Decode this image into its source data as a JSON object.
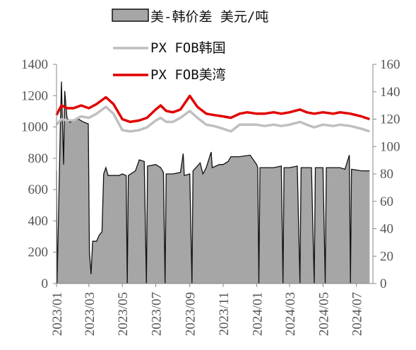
{
  "chart_data": {
    "type": "line",
    "legend": [
      {
        "label": "美-韩价差 美元/吨",
        "kind": "area",
        "color": "#a6a6a6"
      },
      {
        "label": "PX FOB韩国",
        "kind": "line",
        "color": "#bfbfbf"
      },
      {
        "label": "PX FOB美湾",
        "kind": "line",
        "color": "#e10000"
      }
    ],
    "y_left": {
      "range": [
        0,
        1400
      ],
      "ticks": [
        0,
        200,
        400,
        600,
        800,
        1000,
        1200,
        1400
      ]
    },
    "y_right": {
      "range": [
        0,
        160
      ],
      "ticks": [
        0,
        20,
        40,
        60,
        80,
        100,
        120,
        140,
        160
      ]
    },
    "x_ticks": [
      "2023/01",
      "2023/03",
      "2023/05",
      "2023/07",
      "2023/09",
      "2023/11",
      "2024/01",
      "2024/03",
      "2024/05",
      "2024/07"
    ],
    "series": [
      {
        "name": "美-韩价差 美元/吨",
        "kind": "area",
        "axis": "left",
        "points": [
          [
            "2023-01-01",
            720
          ],
          [
            "2023-01-02",
            0
          ],
          [
            "2023-01-05",
            490
          ],
          [
            "2023-01-08",
            1000
          ],
          [
            "2023-01-10",
            1290
          ],
          [
            "2023-01-12",
            1020
          ],
          [
            "2023-01-14",
            760
          ],
          [
            "2023-01-16",
            1230
          ],
          [
            "2023-01-20",
            1060
          ],
          [
            "2023-01-25",
            1030
          ],
          [
            "2023-02-01",
            1040
          ],
          [
            "2023-02-10",
            1050
          ],
          [
            "2023-02-20",
            1030
          ],
          [
            "2023-02-28",
            1020
          ],
          [
            "2023-03-02",
            200
          ],
          [
            "2023-03-05",
            60
          ],
          [
            "2023-03-08",
            270
          ],
          [
            "2023-03-15",
            270
          ],
          [
            "2023-03-20",
            310
          ],
          [
            "2023-03-25",
            330
          ],
          [
            "2023-03-28",
            700
          ],
          [
            "2023-04-01",
            740
          ],
          [
            "2023-04-05",
            690
          ],
          [
            "2023-04-15",
            690
          ],
          [
            "2023-04-25",
            690
          ],
          [
            "2023-05-01",
            700
          ],
          [
            "2023-05-08",
            690
          ],
          [
            "2023-05-10",
            0
          ],
          [
            "2023-05-12",
            690
          ],
          [
            "2023-05-25",
            720
          ],
          [
            "2023-06-01",
            790
          ],
          [
            "2023-06-10",
            780
          ],
          [
            "2023-06-14",
            0
          ],
          [
            "2023-06-16",
            750
          ],
          [
            "2023-07-01",
            760
          ],
          [
            "2023-07-10",
            740
          ],
          [
            "2023-07-15",
            710
          ],
          [
            "2023-07-18",
            0
          ],
          [
            "2023-07-20",
            700
          ],
          [
            "2023-08-01",
            700
          ],
          [
            "2023-08-15",
            710
          ],
          [
            "2023-08-20",
            830
          ],
          [
            "2023-08-22",
            690
          ],
          [
            "2023-09-01",
            700
          ],
          [
            "2023-09-05",
            0
          ],
          [
            "2023-09-07",
            720
          ],
          [
            "2023-09-20",
            770
          ],
          [
            "2023-09-25",
            700
          ],
          [
            "2023-10-01",
            740
          ],
          [
            "2023-10-10",
            840
          ],
          [
            "2023-10-12",
            740
          ],
          [
            "2023-10-25",
            760
          ],
          [
            "2023-11-01",
            760
          ],
          [
            "2023-11-10",
            780
          ],
          [
            "2023-11-15",
            810
          ],
          [
            "2023-12-01",
            810
          ],
          [
            "2023-12-20",
            820
          ],
          [
            "2024-01-01",
            760
          ],
          [
            "2024-01-03",
            740
          ],
          [
            "2024-01-05",
            0
          ],
          [
            "2024-01-07",
            740
          ],
          [
            "2024-02-01",
            740
          ],
          [
            "2024-02-15",
            750
          ],
          [
            "2024-02-18",
            0
          ],
          [
            "2024-02-20",
            740
          ],
          [
            "2024-03-01",
            740
          ],
          [
            "2024-03-15",
            750
          ],
          [
            "2024-03-20",
            0
          ],
          [
            "2024-03-22",
            740
          ],
          [
            "2024-04-10",
            740
          ],
          [
            "2024-04-15",
            0
          ],
          [
            "2024-04-17",
            740
          ],
          [
            "2024-05-01",
            740
          ],
          [
            "2024-05-05",
            0
          ],
          [
            "2024-05-07",
            740
          ],
          [
            "2024-06-01",
            740
          ],
          [
            "2024-06-10",
            730
          ],
          [
            "2024-06-18",
            820
          ],
          [
            "2024-06-20",
            0
          ],
          [
            "2024-06-22",
            730
          ],
          [
            "2024-07-10",
            720
          ],
          [
            "2024-07-25",
            720
          ]
        ]
      },
      {
        "name": "PX FOB韩国",
        "kind": "line",
        "axis": "right",
        "points": [
          [
            "2023-01-01",
            116
          ],
          [
            "2023-01-10",
            120
          ],
          [
            "2023-01-20",
            119
          ],
          [
            "2023-02-01",
            119
          ],
          [
            "2023-02-15",
            122
          ],
          [
            "2023-03-01",
            121
          ],
          [
            "2023-03-15",
            124
          ],
          [
            "2023-04-01",
            129
          ],
          [
            "2023-04-15",
            124
          ],
          [
            "2023-05-01",
            112
          ],
          [
            "2023-05-15",
            111
          ],
          [
            "2023-06-01",
            112
          ],
          [
            "2023-06-15",
            114
          ],
          [
            "2023-07-01",
            119
          ],
          [
            "2023-07-10",
            121
          ],
          [
            "2023-07-20",
            118
          ],
          [
            "2023-08-01",
            118
          ],
          [
            "2023-08-15",
            121
          ],
          [
            "2023-09-01",
            126
          ],
          [
            "2023-09-15",
            121
          ],
          [
            "2023-10-01",
            116
          ],
          [
            "2023-10-15",
            115
          ],
          [
            "2023-11-01",
            113
          ],
          [
            "2023-11-15",
            111
          ],
          [
            "2023-12-01",
            116
          ],
          [
            "2023-12-15",
            116
          ],
          [
            "2024-01-01",
            116
          ],
          [
            "2024-01-15",
            115
          ],
          [
            "2024-02-01",
            116
          ],
          [
            "2024-02-15",
            115
          ],
          [
            "2024-03-01",
            116
          ],
          [
            "2024-03-20",
            118
          ],
          [
            "2024-04-01",
            116
          ],
          [
            "2024-04-15",
            114
          ],
          [
            "2024-05-01",
            116
          ],
          [
            "2024-05-20",
            115
          ],
          [
            "2024-06-01",
            116
          ],
          [
            "2024-06-20",
            115
          ],
          [
            "2024-07-10",
            113
          ],
          [
            "2024-07-25",
            111
          ]
        ]
      },
      {
        "name": "PX FOB美湾",
        "kind": "line",
        "axis": "right",
        "points": [
          [
            "2023-01-01",
            123
          ],
          [
            "2023-01-10",
            130
          ],
          [
            "2023-01-20",
            128
          ],
          [
            "2023-02-01",
            128
          ],
          [
            "2023-02-15",
            130
          ],
          [
            "2023-03-01",
            128
          ],
          [
            "2023-03-15",
            131
          ],
          [
            "2023-04-01",
            136
          ],
          [
            "2023-04-15",
            131
          ],
          [
            "2023-05-01",
            120
          ],
          [
            "2023-05-15",
            118
          ],
          [
            "2023-06-01",
            119
          ],
          [
            "2023-06-15",
            121
          ],
          [
            "2023-07-01",
            127
          ],
          [
            "2023-07-10",
            130
          ],
          [
            "2023-07-20",
            126
          ],
          [
            "2023-08-01",
            125
          ],
          [
            "2023-08-15",
            127
          ],
          [
            "2023-09-01",
            137
          ],
          [
            "2023-09-15",
            129
          ],
          [
            "2023-10-01",
            124
          ],
          [
            "2023-10-15",
            123
          ],
          [
            "2023-11-01",
            122
          ],
          [
            "2023-11-15",
            121
          ],
          [
            "2023-12-01",
            124
          ],
          [
            "2023-12-15",
            125
          ],
          [
            "2024-01-01",
            124
          ],
          [
            "2024-01-15",
            124
          ],
          [
            "2024-02-01",
            125
          ],
          [
            "2024-02-15",
            124
          ],
          [
            "2024-03-01",
            125
          ],
          [
            "2024-03-20",
            127
          ],
          [
            "2024-04-01",
            125
          ],
          [
            "2024-04-15",
            124
          ],
          [
            "2024-05-01",
            125
          ],
          [
            "2024-05-20",
            124
          ],
          [
            "2024-06-01",
            125
          ],
          [
            "2024-06-20",
            124
          ],
          [
            "2024-07-10",
            122
          ],
          [
            "2024-07-25",
            120
          ]
        ]
      }
    ]
  }
}
